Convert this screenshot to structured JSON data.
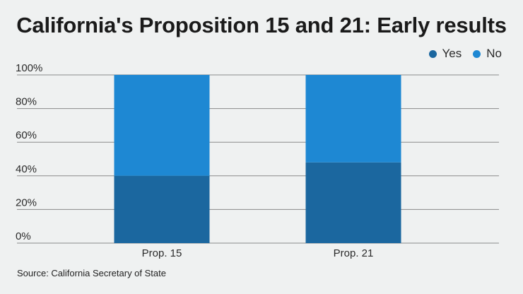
{
  "title": "California's Proposition 15 and 21: Early results",
  "source": "Source: California Secretary of State",
  "colors": {
    "yes": "#1b679f",
    "no": "#1e88d3",
    "grid": "#8a8a8a",
    "background": "#eff1f1"
  },
  "chart_data": {
    "type": "bar",
    "stacked": true,
    "title": "California's Proposition 15 and 21: Early results",
    "categories": [
      "Prop. 15",
      "Prop. 21"
    ],
    "series": [
      {
        "name": "Yes",
        "values": [
          40,
          48
        ]
      },
      {
        "name": "No",
        "values": [
          60,
          52
        ]
      }
    ],
    "y_ticks": [
      "0%",
      "20%",
      "40%",
      "60%",
      "80%",
      "100%"
    ],
    "ylim": [
      0,
      100
    ],
    "xlabel": "",
    "ylabel": "",
    "grid": true,
    "legend": "top-right"
  }
}
